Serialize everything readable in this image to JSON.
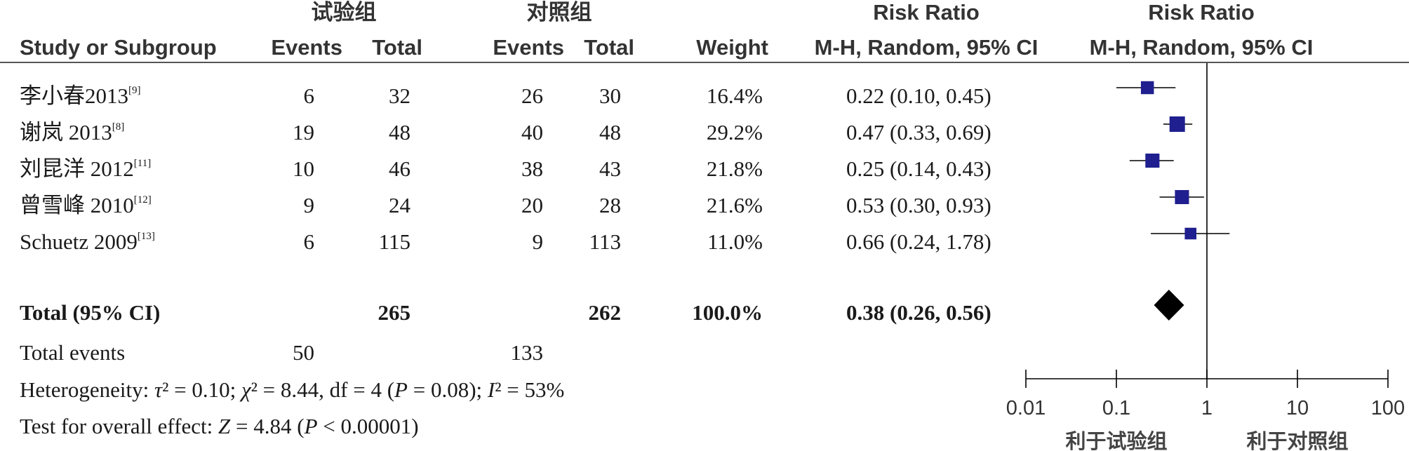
{
  "header": {
    "exp_group": "试验组",
    "ctrl_group": "对照组",
    "rr_title_left": "Risk Ratio",
    "rr_title_right": "Risk Ratio",
    "study": "Study or Subgroup",
    "exp_events": "Events",
    "exp_total": "Total",
    "ctrl_events": "Events",
    "ctrl_total": "Total",
    "weight": "Weight",
    "method_left": "M-H, Random, 95% CI",
    "method_right": "M-H, Random, 95% CI"
  },
  "studies": [
    {
      "name": "李小春2013",
      "ref": "[9]",
      "exp_events": "6",
      "exp_total": "32",
      "ctrl_events": "26",
      "ctrl_total": "30",
      "weight": "16.4%",
      "ci_text": "0.22 (0.10, 0.45)"
    },
    {
      "name": "谢岚 2013",
      "ref": "[8]",
      "exp_events": "19",
      "exp_total": "48",
      "ctrl_events": "40",
      "ctrl_total": "48",
      "weight": "29.2%",
      "ci_text": "0.47 (0.33, 0.69)"
    },
    {
      "name": "刘昆洋 2012",
      "ref": "[11]",
      "exp_events": "10",
      "exp_total": "46",
      "ctrl_events": "38",
      "ctrl_total": "43",
      "weight": "21.8%",
      "ci_text": "0.25 (0.14, 0.43)"
    },
    {
      "name": "曾雪峰 2010",
      "ref": "[12]",
      "exp_events": "9",
      "exp_total": "24",
      "ctrl_events": "20",
      "ctrl_total": "28",
      "weight": "21.6%",
      "ci_text": "0.53 (0.30, 0.93)"
    },
    {
      "name": "Schuetz 2009",
      "ref": "[13]",
      "exp_events": "6",
      "exp_total": "115",
      "ctrl_events": "9",
      "ctrl_total": "113",
      "weight": "11.0%",
      "ci_text": "0.66 (0.24, 1.78)"
    }
  ],
  "total": {
    "label": "Total (95% CI)",
    "exp_total": "265",
    "ctrl_total": "262",
    "weight": "100.0%",
    "ci_text": "0.38 (0.26, 0.56)"
  },
  "total_events": {
    "label": "Total events",
    "exp": "50",
    "ctrl": "133"
  },
  "heterogeneity": {
    "label": "Heterogeneity: ",
    "tau2": "0.10",
    "chi2": "8.44",
    "df": "4",
    "p": "0.08",
    "i2": "53%"
  },
  "overall_effect": {
    "label": "Test for overall effect: ",
    "z": "4.84",
    "p": "< 0.00001"
  },
  "chart_data": {
    "type": "forest",
    "scale": "log",
    "xlim": [
      0.01,
      100
    ],
    "xticks": [
      0.01,
      0.1,
      1,
      10,
      100
    ],
    "xtick_labels": [
      "0.01",
      "0.1",
      "1",
      "10",
      "100"
    ],
    "reference_line": 1,
    "favours_left": "利于试验组",
    "favours_right": "利于对照组",
    "colors": {
      "study_marker": "#1f1f8f",
      "summary_marker": "#000000",
      "line": "#000000"
    },
    "studies": [
      {
        "label": "李小春2013",
        "rr": 0.22,
        "lo": 0.1,
        "hi": 0.45,
        "weight": 16.4
      },
      {
        "label": "谢岚 2013",
        "rr": 0.47,
        "lo": 0.33,
        "hi": 0.69,
        "weight": 29.2
      },
      {
        "label": "刘昆洋 2012",
        "rr": 0.25,
        "lo": 0.14,
        "hi": 0.43,
        "weight": 21.8
      },
      {
        "label": "曾雪峰 2010",
        "rr": 0.53,
        "lo": 0.3,
        "hi": 0.93,
        "weight": 21.6
      },
      {
        "label": "Schuetz 2009",
        "rr": 0.66,
        "lo": 0.24,
        "hi": 1.78,
        "weight": 11.0
      }
    ],
    "summary": {
      "label": "Total (95% CI)",
      "rr": 0.38,
      "lo": 0.26,
      "hi": 0.56
    }
  }
}
